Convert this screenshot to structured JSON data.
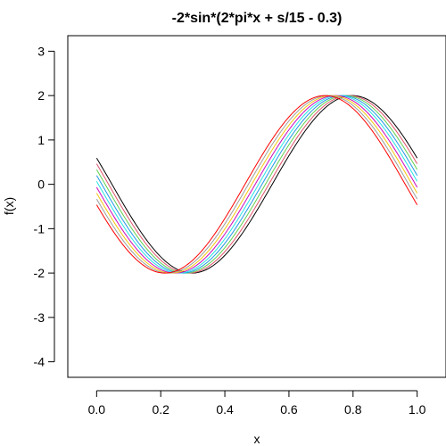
{
  "chart_data": {
    "type": "line",
    "title": "-2*sin*(2*pi*x + s/15 - 0.3)",
    "xlabel": "x",
    "ylabel": "f(x)",
    "xlim": [
      -0.09,
      1.09
    ],
    "ylim": [
      -4.35,
      3.35
    ],
    "x_ticks": [
      0.0,
      0.2,
      0.4,
      0.6,
      0.8,
      1.0
    ],
    "x_tick_labels": [
      "0.0",
      "0.2",
      "0.4",
      "0.6",
      "0.8",
      "1.0"
    ],
    "y_ticks": [
      -4,
      -3,
      -2,
      -1,
      0,
      1,
      2,
      3
    ],
    "y_tick_labels": [
      "-4",
      "-3",
      "-2",
      "-1",
      "0",
      "1",
      "2",
      "3"
    ],
    "grid": false,
    "amplitude": -2,
    "frequency": 2,
    "phase_offset": -0.3,
    "s_divisor": 15,
    "series": [
      {
        "s": 0,
        "color": "#000000"
      },
      {
        "s": 1,
        "color": "#df536b"
      },
      {
        "s": 2,
        "color": "#61d04f"
      },
      {
        "s": 3,
        "color": "#2297e6"
      },
      {
        "s": 4,
        "color": "#28e2e5"
      },
      {
        "s": 5,
        "color": "#cd0bbc"
      },
      {
        "s": 6,
        "color": "#f5c710"
      },
      {
        "s": 7,
        "color": "#9e9e9e"
      },
      {
        "s": 8,
        "color": "#ff0000"
      }
    ]
  }
}
